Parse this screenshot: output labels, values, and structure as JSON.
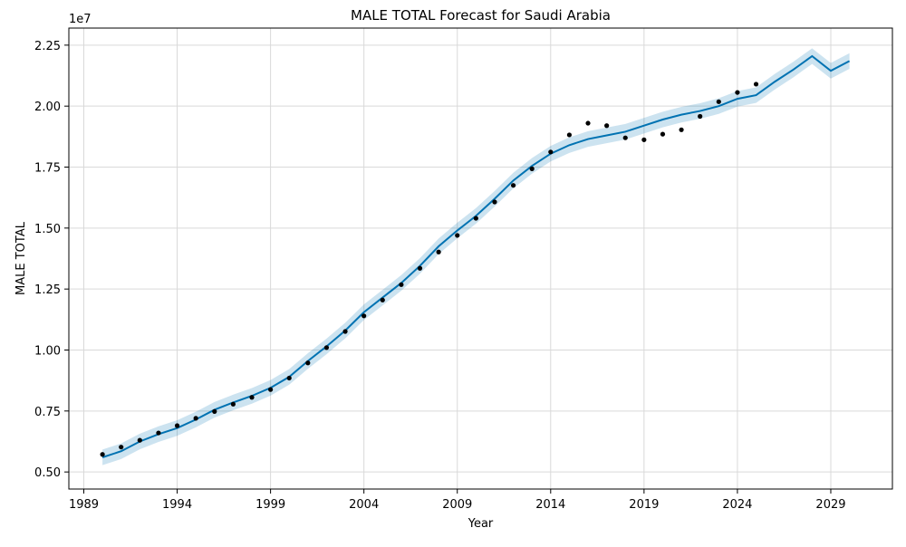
{
  "chart_data": {
    "type": "line",
    "title": "MALE TOTAL Forecast for Saudi Arabia",
    "xlabel": "Year",
    "ylabel": "MALE TOTAL",
    "y_offset_label": "1e7",
    "xlim": [
      1988.2,
      2032.3
    ],
    "ylim": [
      4.3,
      23.2
    ],
    "y_units_scale": 10000000,
    "grid": true,
    "x_ticks": [
      1989,
      1994,
      1999,
      2004,
      2009,
      2014,
      2019,
      2024,
      2029
    ],
    "x_tick_labels": [
      "1989",
      "1994",
      "1999",
      "2004",
      "2009",
      "2014",
      "2019",
      "2024",
      "2029"
    ],
    "y_ticks": [
      5.0,
      7.5,
      10.0,
      12.5,
      15.0,
      17.5,
      20.0,
      22.5
    ],
    "y_tick_labels": [
      "0.50",
      "0.75",
      "1.00",
      "1.25",
      "1.50",
      "1.75",
      "2.00",
      "2.25"
    ],
    "colors": {
      "forecast_line": "#0072B2",
      "uncertainty_band": "#0072B2",
      "observed_points": "#000000",
      "grid": "#d9d9d9"
    },
    "observed": {
      "x": [
        1990,
        1991,
        1992,
        1993,
        1994,
        1995,
        1996,
        1997,
        1998,
        1999,
        2000,
        2001,
        2002,
        2003,
        2004,
        2005,
        2006,
        2007,
        2008,
        2009,
        2010,
        2011,
        2012,
        2013,
        2014,
        2015,
        2016,
        2017,
        2018,
        2019,
        2020,
        2021,
        2022,
        2023,
        2024,
        2025
      ],
      "y": [
        5.72,
        6.02,
        6.3,
        6.6,
        6.9,
        7.2,
        7.48,
        7.78,
        8.06,
        8.38,
        8.85,
        9.47,
        10.1,
        10.76,
        11.4,
        12.05,
        12.68,
        13.35,
        14.02,
        14.7,
        15.4,
        16.07,
        16.75,
        17.43,
        18.12,
        18.82,
        19.3,
        19.2,
        18.7,
        18.62,
        18.85,
        19.03,
        19.58,
        20.18,
        20.56,
        20.9
      ]
    },
    "forecast": {
      "x": [
        1990,
        1991,
        1992,
        1993,
        1994,
        1995,
        1996,
        1997,
        1998,
        1999,
        2000,
        2001,
        2002,
        2003,
        2004,
        2005,
        2006,
        2007,
        2008,
        2009,
        2010,
        2011,
        2012,
        2013,
        2014,
        2015,
        2016,
        2017,
        2018,
        2019,
        2020,
        2021,
        2022,
        2023,
        2024,
        2025,
        2026,
        2027,
        2028,
        2029,
        2030
      ],
      "yhat": [
        5.6,
        5.85,
        6.25,
        6.55,
        6.8,
        7.15,
        7.55,
        7.85,
        8.12,
        8.45,
        8.9,
        9.55,
        10.15,
        10.8,
        11.55,
        12.15,
        12.75,
        13.45,
        14.25,
        14.9,
        15.5,
        16.2,
        16.95,
        17.55,
        18.05,
        18.4,
        18.65,
        18.8,
        18.95,
        19.2,
        19.45,
        19.65,
        19.8,
        20.0,
        20.3,
        20.45,
        21.0,
        21.5,
        22.05,
        21.45,
        21.85
      ],
      "band_halfwidth": 0.32
    }
  }
}
